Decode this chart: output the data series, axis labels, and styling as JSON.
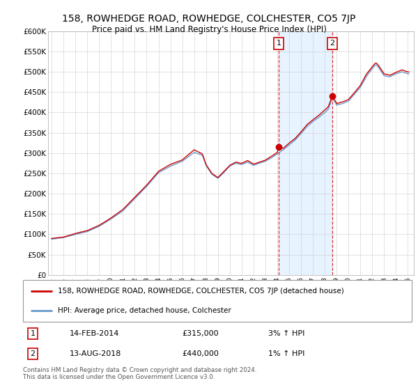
{
  "title": "158, ROWHEDGE ROAD, ROWHEDGE, COLCHESTER, CO5 7JP",
  "subtitle": "Price paid vs. HM Land Registry's House Price Index (HPI)",
  "ylim": [
    0,
    600000
  ],
  "yticks": [
    0,
    50000,
    100000,
    150000,
    200000,
    250000,
    300000,
    350000,
    400000,
    450000,
    500000,
    550000,
    600000
  ],
  "ytick_labels": [
    "£0",
    "£50K",
    "£100K",
    "£150K",
    "£200K",
    "£250K",
    "£300K",
    "£350K",
    "£400K",
    "£450K",
    "£500K",
    "£550K",
    "£600K"
  ],
  "plot_bg_color": "#ffffff",
  "grid_color": "#cccccc",
  "shade_color": "#ddeeff",
  "title_fontsize": 10,
  "subtitle_fontsize": 8.5,
  "sale1_date_num": 2014.12,
  "sale1_price": 315000,
  "sale1_label": "1",
  "sale2_date_num": 2018.62,
  "sale2_price": 440000,
  "sale2_label": "2",
  "line_color_property": "#cc0000",
  "line_color_hpi": "#6699cc",
  "legend_label_property": "158, ROWHEDGE ROAD, ROWHEDGE, COLCHESTER, CO5 7JP (detached house)",
  "legend_label_hpi": "HPI: Average price, detached house, Colchester",
  "footer": "Contains HM Land Registry data © Crown copyright and database right 2024.\nThis data is licensed under the Open Government Licence v3.0.",
  "table_row1": [
    "1",
    "14-FEB-2014",
    "£315,000",
    "3% ↑ HPI"
  ],
  "table_row2": [
    "2",
    "13-AUG-2018",
    "£440,000",
    "1% ↑ HPI"
  ],
  "xlim_left": 1994.7,
  "xlim_right": 2025.5
}
